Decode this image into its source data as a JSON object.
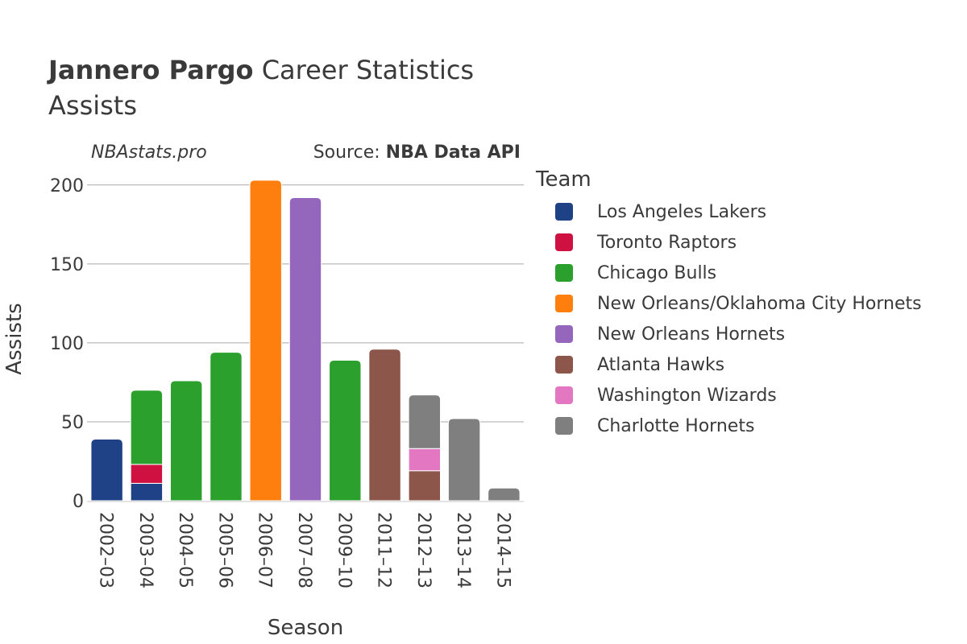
{
  "title": {
    "bold": "Jannero Pargo",
    "rest": " Career Statistics",
    "subtitle": "Assists"
  },
  "credits": {
    "site": "NBAstats.pro",
    "source_label": "Source: ",
    "source_name": "NBA Data API"
  },
  "legend": {
    "title": "Team",
    "placement": "right"
  },
  "chart_data": {
    "type": "bar",
    "stacked": true,
    "xlabel": "Season",
    "ylabel": "Assists",
    "ylim": [
      0,
      205
    ],
    "yticks": [
      0,
      50,
      100,
      150,
      200
    ],
    "grid": true,
    "categories": [
      "2002–03",
      "2003–04",
      "2004–05",
      "2005–06",
      "2006–07",
      "2007–08",
      "2009–10",
      "2011–12",
      "2012–13",
      "2013–14",
      "2014–15"
    ],
    "series": [
      {
        "name": "Los Angeles Lakers",
        "color": "#1f4287",
        "values": [
          39,
          11,
          0,
          0,
          0,
          0,
          0,
          0,
          0,
          0,
          0
        ]
      },
      {
        "name": "Toronto Raptors",
        "color": "#ce1141",
        "values": [
          0,
          12,
          0,
          0,
          0,
          0,
          0,
          0,
          0,
          0,
          0
        ]
      },
      {
        "name": "Chicago Bulls",
        "color": "#2ca02c",
        "values": [
          0,
          47,
          76,
          94,
          0,
          0,
          89,
          0,
          0,
          0,
          0
        ]
      },
      {
        "name": "New Orleans/Oklahoma City Hornets",
        "color": "#ff7f0e",
        "values": [
          0,
          0,
          0,
          0,
          203,
          0,
          0,
          0,
          0,
          0,
          0
        ]
      },
      {
        "name": "New Orleans Hornets",
        "color": "#9467bd",
        "values": [
          0,
          0,
          0,
          0,
          0,
          192,
          0,
          0,
          0,
          0,
          0
        ]
      },
      {
        "name": "Atlanta Hawks",
        "color": "#8c564b",
        "values": [
          0,
          0,
          0,
          0,
          0,
          0,
          0,
          96,
          19,
          0,
          0
        ]
      },
      {
        "name": "Washington Wizards",
        "color": "#e377c2",
        "values": [
          0,
          0,
          0,
          0,
          0,
          0,
          0,
          0,
          14,
          0,
          0
        ]
      },
      {
        "name": "Charlotte Hornets",
        "color": "#7f7f7f",
        "values": [
          0,
          0,
          0,
          0,
          0,
          0,
          0,
          0,
          34,
          52,
          8
        ]
      }
    ]
  }
}
